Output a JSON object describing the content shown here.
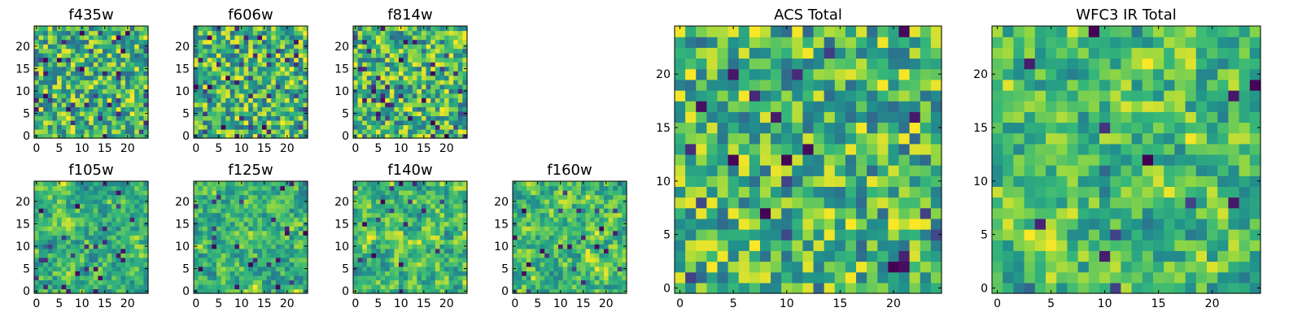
{
  "figure": {
    "background": "#ffffff",
    "colormap": "viridis"
  },
  "chart_data": [
    {
      "type": "heatmap",
      "title": "f435w",
      "grid_size": 25,
      "seed": 11,
      "smooth": 0,
      "dark_fraction": 0.07,
      "xlim": [
        -0.5,
        24.5
      ],
      "ylim": [
        -0.5,
        24.5
      ],
      "xticks": [
        0,
        5,
        10,
        15,
        20
      ],
      "yticks": [
        0,
        5,
        10,
        15,
        20
      ]
    },
    {
      "type": "heatmap",
      "title": "f606w",
      "grid_size": 25,
      "seed": 23,
      "smooth": 0,
      "dark_fraction": 0.06,
      "xlim": [
        -0.5,
        24.5
      ],
      "ylim": [
        -0.5,
        24.5
      ],
      "xticks": [
        0,
        5,
        10,
        15,
        20
      ],
      "yticks": [
        0,
        5,
        10,
        15,
        20
      ]
    },
    {
      "type": "heatmap",
      "title": "f814w",
      "grid_size": 25,
      "seed": 37,
      "smooth": 0,
      "dark_fraction": 0.06,
      "xlim": [
        -0.5,
        24.5
      ],
      "ylim": [
        -0.5,
        24.5
      ],
      "xticks": [
        0,
        5,
        10,
        15,
        20
      ],
      "yticks": [
        0,
        5,
        10,
        15,
        20
      ]
    },
    {
      "type": "heatmap",
      "title": "f105w",
      "grid_size": 25,
      "seed": 41,
      "smooth": 1,
      "dark_fraction": 0.04,
      "xlim": [
        -0.5,
        24.5
      ],
      "ylim": [
        -0.5,
        24.5
      ],
      "xticks": [
        0,
        5,
        10,
        15,
        20
      ],
      "yticks": [
        0,
        5,
        10,
        15,
        20
      ]
    },
    {
      "type": "heatmap",
      "title": "f125w",
      "grid_size": 25,
      "seed": 53,
      "smooth": 1,
      "dark_fraction": 0.03,
      "xlim": [
        -0.5,
        24.5
      ],
      "ylim": [
        -0.5,
        24.5
      ],
      "xticks": [
        0,
        5,
        10,
        15,
        20
      ],
      "yticks": [
        0,
        5,
        10,
        15,
        20
      ]
    },
    {
      "type": "heatmap",
      "title": "f140w",
      "grid_size": 25,
      "seed": 67,
      "smooth": 1,
      "dark_fraction": 0.03,
      "xlim": [
        -0.5,
        24.5
      ],
      "ylim": [
        -0.5,
        24.5
      ],
      "xticks": [
        0,
        5,
        10,
        15,
        20
      ],
      "yticks": [
        0,
        5,
        10,
        15,
        20
      ]
    },
    {
      "type": "heatmap",
      "title": "f160w",
      "grid_size": 25,
      "seed": 79,
      "smooth": 1,
      "dark_fraction": 0.04,
      "xlim": [
        -0.5,
        24.5
      ],
      "ylim": [
        -0.5,
        24.5
      ],
      "xticks": [
        0,
        5,
        10,
        15,
        20
      ],
      "yticks": [
        0,
        5,
        10,
        15,
        20
      ]
    },
    {
      "type": "heatmap",
      "title": "ACS Total",
      "grid_size": 25,
      "seed": 97,
      "smooth": 0,
      "dark_fraction": 0.04,
      "xlim": [
        -0.5,
        24.5
      ],
      "ylim": [
        -0.5,
        24.5
      ],
      "xticks": [
        0,
        5,
        10,
        15,
        20
      ],
      "yticks": [
        0,
        5,
        10,
        15,
        20
      ]
    },
    {
      "type": "heatmap",
      "title": "WFC3 IR Total",
      "grid_size": 25,
      "seed": 131,
      "smooth": 1,
      "dark_fraction": 0.02,
      "xlim": [
        -0.5,
        24.5
      ],
      "ylim": [
        -0.5,
        24.5
      ],
      "xticks": [
        0,
        5,
        10,
        15,
        20
      ],
      "yticks": [
        0,
        5,
        10,
        15,
        20
      ]
    }
  ]
}
